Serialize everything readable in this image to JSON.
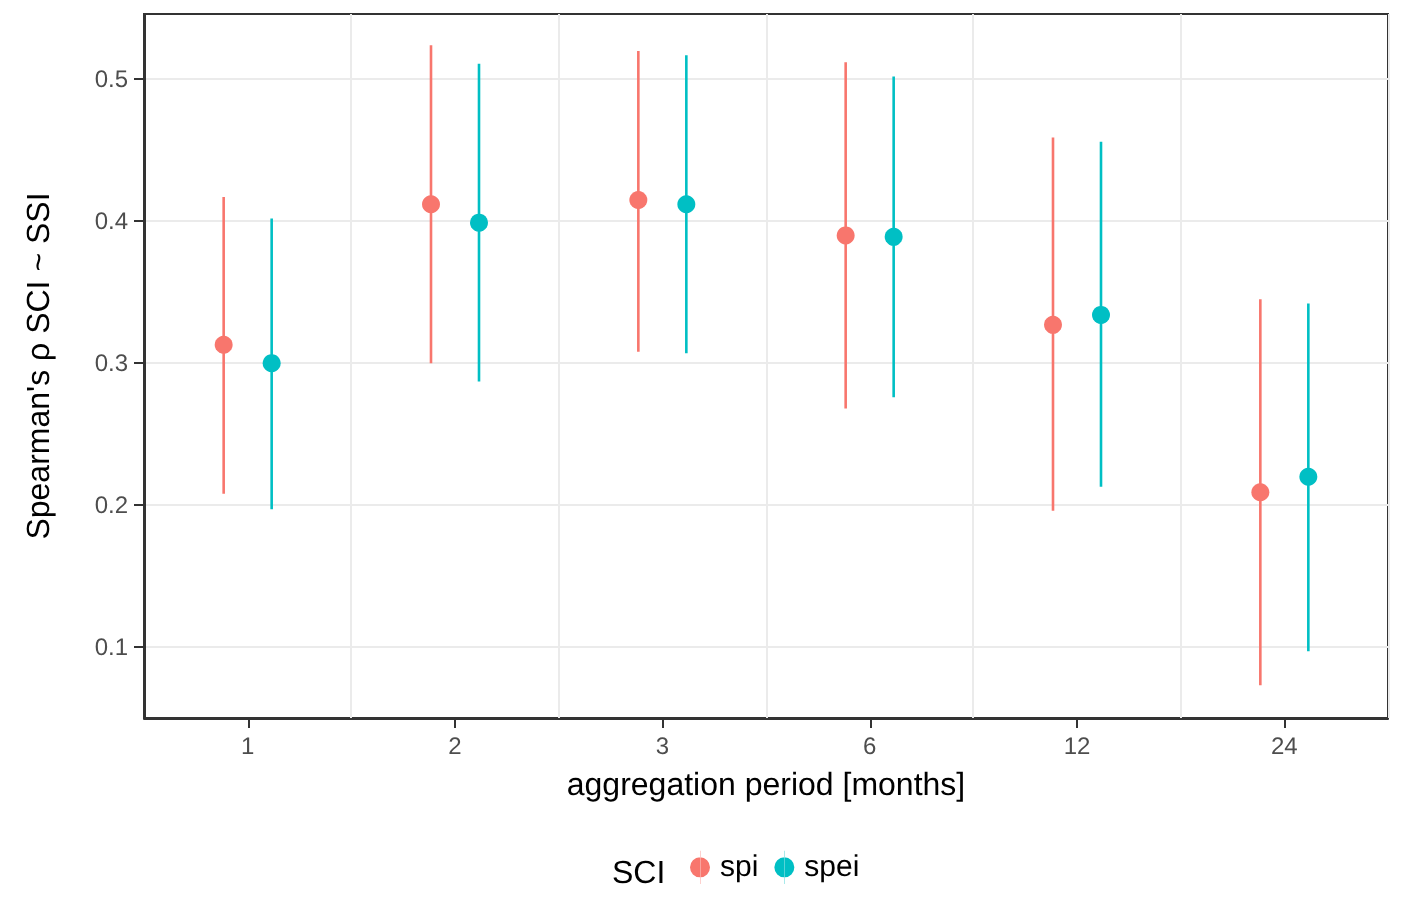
{
  "chart_data": {
    "type": "scatter",
    "xlabel": "aggregation period [months]",
    "ylabel": "Spearman's ρ SCI ~ SSI",
    "legend_title": "SCI",
    "categories": [
      "1",
      "2",
      "3",
      "6",
      "12",
      "24"
    ],
    "series": [
      {
        "name": "spi",
        "color": "#f8766d",
        "values": [
          0.313,
          0.412,
          0.415,
          0.39,
          0.327,
          0.209
        ],
        "errors": [
          [
            0.208,
            0.417
          ],
          [
            0.3,
            0.524
          ],
          [
            0.308,
            0.52
          ],
          [
            0.268,
            0.512
          ],
          [
            0.196,
            0.459
          ],
          [
            0.073,
            0.345
          ]
        ]
      },
      {
        "name": "spei",
        "color": "#00bfc4",
        "values": [
          0.3,
          0.399,
          0.412,
          0.389,
          0.334,
          0.22
        ],
        "errors": [
          [
            0.197,
            0.402
          ],
          [
            0.287,
            0.511
          ],
          [
            0.307,
            0.517
          ],
          [
            0.276,
            0.502
          ],
          [
            0.213,
            0.456
          ],
          [
            0.097,
            0.342
          ]
        ]
      }
    ],
    "ylim": [
      0.05,
      0.546
    ],
    "yticks": [
      0.1,
      0.2,
      0.3,
      0.4,
      0.5
    ],
    "grid": true,
    "legend": "bottom",
    "marker": "circle"
  }
}
